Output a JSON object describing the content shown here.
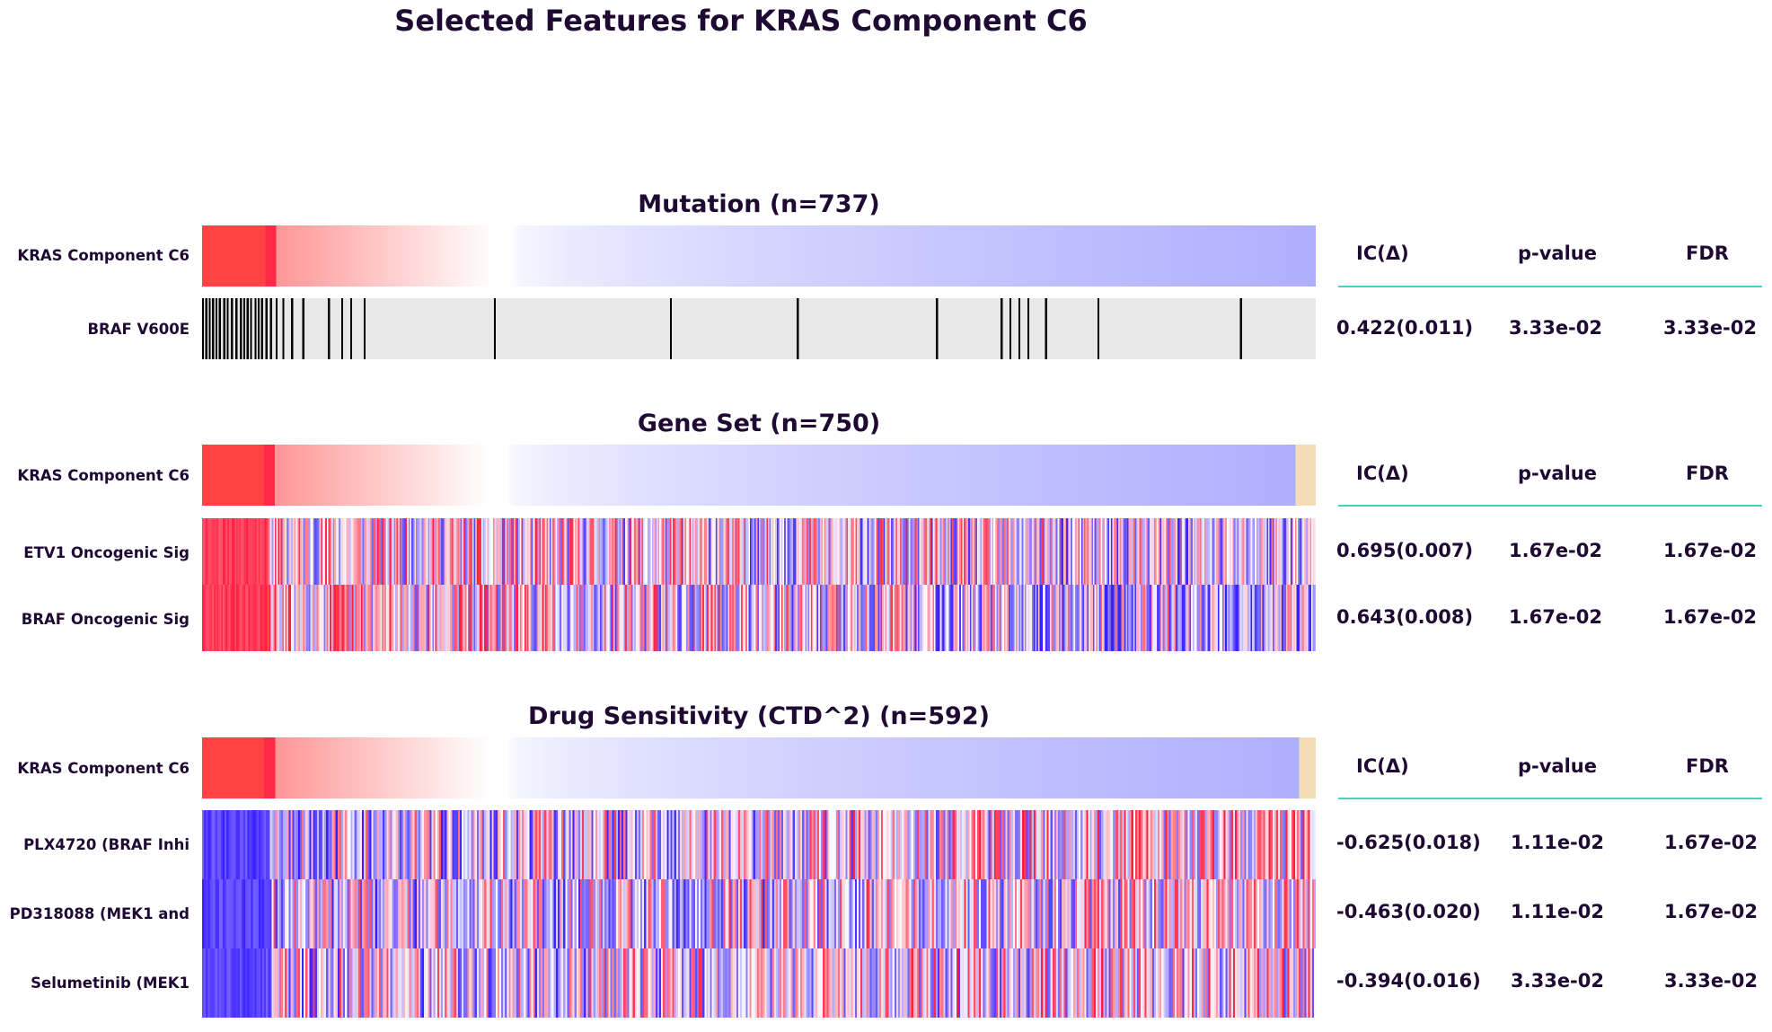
{
  "title": "Selected Features for KRAS Component C6",
  "colors": {
    "high": "#ff1f3f",
    "low": "#3a1fff",
    "mid": "#ffffff",
    "mutation_present": "#000000",
    "mutation_absent": "#e8e8e8",
    "missing": "#f3dcb6",
    "rule": "#49d1bd",
    "text": "#1f0a33"
  },
  "stat_headers": [
    "IC(Δ)",
    "p-value",
    "FDR"
  ],
  "sections": [
    {
      "title": "Mutation (n=737)",
      "target_label": "KRAS Component C6",
      "features": [
        {
          "label": "BRAF V600E",
          "ic": "0.422(0.011)",
          "p": "3.33e-02",
          "fdr": "3.33e-02"
        }
      ]
    },
    {
      "title": "Gene Set (n=750)",
      "target_label": "KRAS Component C6",
      "features": [
        {
          "label": "ETV1 Oncogenic Sig",
          "ic": "0.695(0.007)",
          "p": "1.67e-02",
          "fdr": "1.67e-02"
        },
        {
          "label": "BRAF Oncogenic Sig",
          "ic": "0.643(0.008)",
          "p": "1.67e-02",
          "fdr": "1.67e-02"
        }
      ]
    },
    {
      "title": "Drug Sensitivity (CTD^2) (n=592)",
      "target_label": "KRAS Component C6",
      "features": [
        {
          "label": "PLX4720 (BRAF Inhi",
          "ic": "-0.625(0.018)",
          "p": "1.11e-02",
          "fdr": "1.67e-02"
        },
        {
          "label": "PD318088 (MEK1 and",
          "ic": "-0.463(0.020)",
          "p": "1.11e-02",
          "fdr": "1.67e-02"
        },
        {
          "label": "Selumetinib (MEK1 ",
          "ic": "-0.394(0.016)",
          "p": "3.33e-02",
          "fdr": "3.33e-02"
        }
      ]
    }
  ],
  "chart_data": {
    "type": "heatmap",
    "title": "Selected Features for KRAS Component C6",
    "panels": [
      {
        "name": "Mutation (n=737)",
        "n": 737,
        "target": "KRAS Component C6",
        "features": [
          "BRAF V600E"
        ],
        "mutation_positions_approx": [
          0.0,
          0.003,
          0.006,
          0.009,
          0.012,
          0.015,
          0.019,
          0.022,
          0.026,
          0.03,
          0.034,
          0.037,
          0.04,
          0.043,
          0.047,
          0.05,
          0.053,
          0.057,
          0.061,
          0.066,
          0.072,
          0.08,
          0.09,
          0.113,
          0.125,
          0.133,
          0.145,
          0.262,
          0.42,
          0.534,
          0.659,
          0.717,
          0.725,
          0.733,
          0.741,
          0.757,
          0.804,
          0.932
        ]
      },
      {
        "name": "Gene Set (n=750)",
        "n": 750,
        "target": "KRAS Component C6",
        "target_missing_fraction": 0.018,
        "features": [
          "ETV1 Oncogenic Sig",
          "BRAF Oncogenic Sig"
        ]
      },
      {
        "name": "Drug Sensitivity (CTD^2) (n=592)",
        "n": 592,
        "target": "KRAS Component C6",
        "target_missing_fraction": 0.015,
        "features": [
          "PLX4720 (BRAF Inhi",
          "PD318088 (MEK1 and",
          "Selumetinib (MEK1 "
        ]
      }
    ],
    "legend": "none",
    "grid": false
  }
}
